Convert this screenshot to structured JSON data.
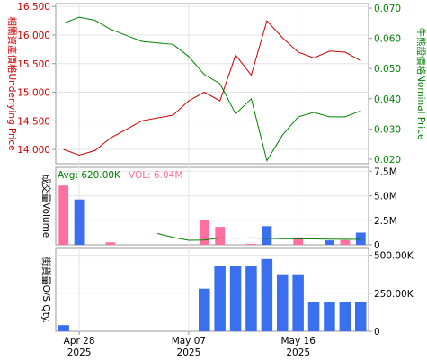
{
  "chart_data": [
    {
      "type": "line",
      "y_left_label": "相關資產價格Underlying Price",
      "y_right_label": "牛熊證價格Nominal Price",
      "y_left_ticks": [
        "16.500",
        "16.000",
        "15.500",
        "15.000",
        "14.500",
        "14.000"
      ],
      "y_right_ticks": [
        "0.070",
        "0.060",
        "0.050",
        "0.040",
        "0.030",
        "0.020"
      ],
      "y_left_range": [
        13.75,
        16.55
      ],
      "y_right_range": [
        0.0185,
        0.0715
      ],
      "series": [
        {
          "axis": "left",
          "color": "#cc0000",
          "points": [
            [
              0,
              14.0
            ],
            [
              1,
              13.9
            ],
            [
              2,
              13.98
            ],
            [
              3,
              14.2
            ],
            [
              4,
              14.35
            ],
            [
              5,
              14.5
            ],
            [
              6,
              14.55
            ],
            [
              7,
              14.6
            ],
            [
              8,
              14.85
            ],
            [
              9,
              15.0
            ],
            [
              10,
              14.85
            ],
            [
              11,
              15.65
            ],
            [
              12,
              15.3
            ],
            [
              13,
              16.25
            ],
            [
              14,
              15.95
            ],
            [
              15,
              15.7
            ],
            [
              16,
              15.6
            ],
            [
              17,
              15.72
            ],
            [
              18,
              15.7
            ],
            [
              19,
              15.55
            ]
          ]
        },
        {
          "axis": "right",
          "color": "#008000",
          "points": [
            [
              0,
              0.065
            ],
            [
              1,
              0.067
            ],
            [
              2,
              0.066
            ],
            [
              3,
              0.063
            ],
            [
              4,
              0.061
            ],
            [
              5,
              0.059
            ],
            [
              6,
              0.0585
            ],
            [
              7,
              0.058
            ],
            [
              8,
              0.054
            ],
            [
              9,
              0.048
            ],
            [
              10,
              0.045
            ],
            [
              11,
              0.035
            ],
            [
              12,
              0.04
            ],
            [
              13,
              0.0195
            ],
            [
              14,
              0.028
            ],
            [
              15,
              0.034
            ],
            [
              16,
              0.0355
            ],
            [
              17,
              0.034
            ],
            [
              18,
              0.034
            ],
            [
              19,
              0.036
            ]
          ]
        }
      ]
    },
    {
      "type": "bar",
      "y_label": "成交量Volume",
      "avg_label": "Avg: 620.00K",
      "vol_label": "VOL: 6.04M",
      "y_ticks": [
        "7.5M",
        "5.0M",
        "2.5M",
        "0"
      ],
      "y_range": [
        0,
        7900000
      ],
      "bars": [
        {
          "i": 0,
          "value": 6040000,
          "color": "#ff6fa0"
        },
        {
          "i": 1,
          "value": 4620000,
          "color": "#3a6ff0"
        },
        {
          "i": 3,
          "value": 250000,
          "color": "#ff6fa0"
        },
        {
          "i": 9,
          "value": 2500000,
          "color": "#ff6fa0"
        },
        {
          "i": 10,
          "value": 1830000,
          "color": "#ff6fa0"
        },
        {
          "i": 12,
          "value": 100000,
          "color": "#ff6fa0"
        },
        {
          "i": 13,
          "value": 1900000,
          "color": "#3a6ff0"
        },
        {
          "i": 15,
          "value": 750000,
          "color": "#ff6fa0"
        },
        {
          "i": 17,
          "value": 450000,
          "color": "#3a6ff0"
        },
        {
          "i": 18,
          "value": 480000,
          "color": "#ff6fa0"
        },
        {
          "i": 19,
          "value": 1240000,
          "color": "#3a6ff0"
        }
      ],
      "avg_line": {
        "color": "#008000",
        "points": [
          [
            6,
            1150000
          ],
          [
            7,
            760000
          ],
          [
            8,
            460000
          ],
          [
            9,
            480000
          ],
          [
            10,
            700000
          ],
          [
            11,
            680000
          ],
          [
            12,
            700000
          ],
          [
            13,
            650000
          ],
          [
            14,
            620000
          ],
          [
            15,
            610000
          ],
          [
            16,
            600000
          ],
          [
            17,
            580000
          ],
          [
            18,
            560000
          ],
          [
            19,
            560000
          ]
        ]
      }
    },
    {
      "type": "bar",
      "y_label": "街貨量O/S Qty.",
      "y_ticks": [
        "500.00K",
        "250.00K",
        "0"
      ],
      "y_range": [
        0,
        545000
      ],
      "bars": [
        {
          "i": 0,
          "value": 40000,
          "color": "#3a6ff0"
        },
        {
          "i": 9,
          "value": 280000,
          "color": "#3a6ff0"
        },
        {
          "i": 10,
          "value": 430000,
          "color": "#3a6ff0"
        },
        {
          "i": 11,
          "value": 430000,
          "color": "#3a6ff0"
        },
        {
          "i": 12,
          "value": 430000,
          "color": "#3a6ff0"
        },
        {
          "i": 13,
          "value": 475000,
          "color": "#3a6ff0"
        },
        {
          "i": 14,
          "value": 375000,
          "color": "#3a6ff0"
        },
        {
          "i": 15,
          "value": 375000,
          "color": "#3a6ff0"
        },
        {
          "i": 16,
          "value": 190000,
          "color": "#3a6ff0"
        },
        {
          "i": 17,
          "value": 190000,
          "color": "#3a6ff0"
        },
        {
          "i": 18,
          "value": 190000,
          "color": "#3a6ff0"
        },
        {
          "i": 19,
          "value": 190000,
          "color": "#3a6ff0"
        }
      ]
    }
  ],
  "x_axis": {
    "count": 20,
    "ticks": [
      {
        "i": 1,
        "line1": "Apr 28",
        "line2": "2025"
      },
      {
        "i": 8,
        "line1": "May 07",
        "line2": "2025"
      },
      {
        "i": 15,
        "line1": "May 16",
        "line2": "2025"
      }
    ]
  },
  "colors": {
    "frame": "#999999",
    "grid": "#e4e4e4",
    "left_axis_text": "#cc0000",
    "right_axis_text": "#008000",
    "pink": "#ff6fa0",
    "blue": "#3a6ff0"
  }
}
